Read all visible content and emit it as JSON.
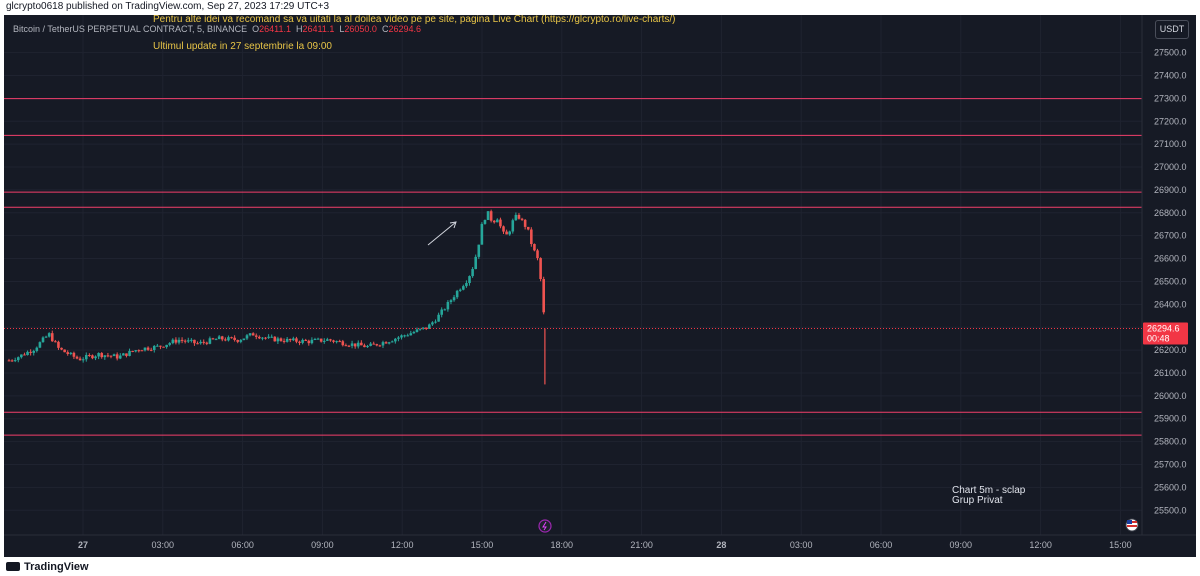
{
  "header": {
    "publisher": "glcrypto0618 published on TradingView.com, Sep 27, 2023 17:29 UTC+3"
  },
  "symbol": {
    "name": "Bitcoin / TetherUS PERPETUAL CONTRACT, 5, BINANCE",
    "o_label": "O",
    "o_value": "26411.1",
    "h_label": "H",
    "h_value": "26411.1",
    "l_label": "L",
    "l_value": "26050.0",
    "c_label": "C",
    "c_value": "26294.6"
  },
  "notes": {
    "line1": "Pentru alte idei va recomand sa va uitati la al doilea video pe pe site, pagina Live Chart (https://glcrypto.ro/live-charts/)",
    "line2": "Ultimul update in 27 septembrie la 09:00"
  },
  "currency_button": "USDT",
  "caption": {
    "line1": "Chart 5m - sclap",
    "line2": "Grup Privat"
  },
  "footer": {
    "logo_text": "TradingView"
  },
  "colors": {
    "background": "#161a25",
    "up": "#26a69a",
    "down": "#ef5350",
    "level_line": "#f23f6b",
    "note_text": "#e8c547"
  },
  "chart_data": {
    "type": "candlestick",
    "ylim": [
      25380,
      27660
    ],
    "y_ticks": [
      "25500.0",
      "25600.0",
      "25700.0",
      "25800.0",
      "25900.0",
      "26000.0",
      "26100.0",
      "26200.0",
      "26300.0",
      "26400.0",
      "26500.0",
      "26600.0",
      "26700.0",
      "26800.0",
      "26900.0",
      "27000.0",
      "27100.0",
      "27200.0",
      "27300.0",
      "27400.0",
      "27500.0"
    ],
    "x_ticks": [
      "27",
      "03:00",
      "06:00",
      "09:00",
      "12:00",
      "15:00",
      "18:00",
      "21:00",
      "28",
      "03:00",
      "06:00",
      "09:00",
      "12:00",
      "15:00"
    ],
    "horizontal_levels": [
      "27299.1",
      "27138.1",
      "26890.4",
      "26824.3",
      "25928.5",
      "25828.4"
    ],
    "last_price": "26294.6",
    "countdown": "00:48",
    "price_path": [
      [
        0,
        26155
      ],
      [
        2,
        26172
      ],
      [
        5,
        26205
      ],
      [
        8,
        26270
      ],
      [
        10,
        26205
      ],
      [
        14,
        26160
      ],
      [
        18,
        26182
      ],
      [
        22,
        26170
      ],
      [
        26,
        26205
      ],
      [
        30,
        26215
      ],
      [
        34,
        26245
      ],
      [
        38,
        26228
      ],
      [
        42,
        26250
      ],
      [
        46,
        26245
      ],
      [
        49,
        26270
      ],
      [
        52,
        26250
      ],
      [
        56,
        26242
      ],
      [
        60,
        26238
      ],
      [
        64,
        26245
      ],
      [
        68,
        26228
      ],
      [
        72,
        26215
      ],
      [
        76,
        26240
      ],
      [
        80,
        26270
      ],
      [
        84,
        26300
      ],
      [
        86,
        26345
      ],
      [
        88,
        26400
      ],
      [
        90,
        26460
      ],
      [
        92,
        26510
      ],
      [
        93,
        26560
      ],
      [
        94,
        26640
      ],
      [
        95,
        26760
      ],
      [
        96,
        26800
      ],
      [
        97,
        26760
      ],
      [
        98,
        26780
      ],
      [
        99,
        26710
      ],
      [
        100,
        26700
      ],
      [
        101,
        26760
      ],
      [
        102,
        26790
      ],
      [
        103,
        26760
      ],
      [
        104,
        26730
      ],
      [
        105,
        26650
      ],
      [
        106,
        26600
      ],
      [
        106.5,
        26540
      ],
      [
        107,
        26430
      ],
      [
        107.5,
        26294.6
      ]
    ],
    "final_low": 26050.0
  }
}
